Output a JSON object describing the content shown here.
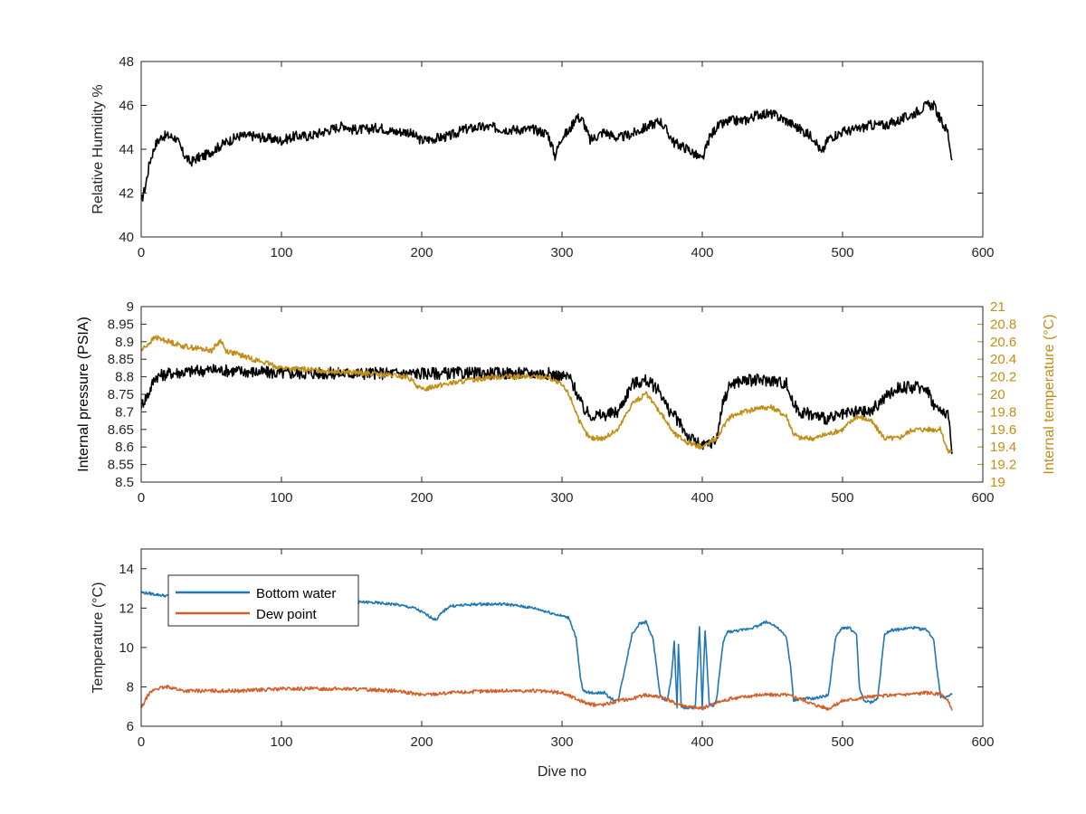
{
  "chart_data": [
    {
      "type": "line",
      "xlabel": "",
      "ylabel": "Relative Humidity %",
      "xlim": [
        0,
        600
      ],
      "ylim": [
        40,
        48
      ],
      "xticks": [
        0,
        100,
        200,
        300,
        400,
        500,
        600
      ],
      "yticks": [
        40,
        42,
        44,
        46,
        48
      ],
      "grid": false,
      "series": [
        {
          "color": "#000000",
          "x": [
            0,
            3,
            6,
            10,
            15,
            20,
            25,
            30,
            35,
            40,
            45,
            50,
            55,
            60,
            70,
            80,
            90,
            100,
            110,
            120,
            130,
            140,
            145,
            150,
            160,
            170,
            180,
            190,
            200,
            210,
            220,
            230,
            240,
            250,
            260,
            270,
            280,
            290,
            295,
            300,
            305,
            310,
            315,
            320,
            330,
            340,
            350,
            360,
            370,
            380,
            390,
            400,
            405,
            410,
            420,
            430,
            440,
            450,
            460,
            470,
            480,
            485,
            490,
            500,
            510,
            520,
            530,
            540,
            550,
            560,
            565,
            570,
            575,
            578
          ],
          "y": [
            41.6,
            42.3,
            43.4,
            44.2,
            44.6,
            44.6,
            44.5,
            43.8,
            43.4,
            43.6,
            43.7,
            43.9,
            44.1,
            44.3,
            44.6,
            44.6,
            44.5,
            44.4,
            44.6,
            44.6,
            44.8,
            45.0,
            45.1,
            44.9,
            44.9,
            45.0,
            44.8,
            44.8,
            44.4,
            44.5,
            44.6,
            44.9,
            45.0,
            45.0,
            44.9,
            44.9,
            44.9,
            44.7,
            43.7,
            44.6,
            44.8,
            45.5,
            45.3,
            44.4,
            44.8,
            44.5,
            44.7,
            45.0,
            45.3,
            44.3,
            44.0,
            43.5,
            44.5,
            45.0,
            45.3,
            45.3,
            45.6,
            45.6,
            45.3,
            44.9,
            44.5,
            43.8,
            44.5,
            44.8,
            44.9,
            45.1,
            45.1,
            45.3,
            45.6,
            46.0,
            46.0,
            45.3,
            44.8,
            43.5
          ]
        }
      ]
    },
    {
      "type": "line",
      "xlabel": "",
      "ylabel": "Internal pressure (PSIA)",
      "ylabel_right": "Internal temperature (°C)",
      "xlim": [
        0,
        600
      ],
      "ylim": [
        8.5,
        9
      ],
      "ylim_right": [
        19,
        21
      ],
      "xticks": [
        0,
        100,
        200,
        300,
        400,
        500,
        600
      ],
      "yticks": [
        8.5,
        8.55,
        8.6,
        8.65,
        8.7,
        8.75,
        8.8,
        8.85,
        8.9,
        8.95,
        9
      ],
      "yticks_right": [
        19,
        19.2,
        19.4,
        19.6,
        19.8,
        20,
        20.2,
        20.4,
        20.6,
        20.8,
        21
      ],
      "grid": false,
      "series": [
        {
          "axis": "left",
          "color": "#000000",
          "x": [
            0,
            5,
            10,
            20,
            50,
            100,
            150,
            200,
            250,
            290,
            300,
            305,
            310,
            315,
            320,
            330,
            340,
            345,
            350,
            360,
            370,
            375,
            380,
            390,
            400,
            410,
            415,
            420,
            430,
            440,
            450,
            460,
            465,
            470,
            480,
            490,
            500,
            510,
            520,
            530,
            540,
            560,
            565,
            570,
            575,
            578
          ],
          "y": [
            8.72,
            8.75,
            8.8,
            8.81,
            8.82,
            8.81,
            8.81,
            8.81,
            8.81,
            8.81,
            8.8,
            8.8,
            8.76,
            8.71,
            8.69,
            8.69,
            8.7,
            8.74,
            8.78,
            8.79,
            8.76,
            8.71,
            8.69,
            8.63,
            8.6,
            8.62,
            8.73,
            8.78,
            8.79,
            8.79,
            8.79,
            8.78,
            8.72,
            8.7,
            8.69,
            8.68,
            8.69,
            8.7,
            8.7,
            8.74,
            8.77,
            8.77,
            8.72,
            8.7,
            8.7,
            8.58
          ]
        },
        {
          "axis": "right",
          "color": "#c38e16",
          "x": [
            0,
            10,
            20,
            30,
            50,
            57,
            60,
            70,
            100,
            150,
            190,
            200,
            210,
            250,
            290,
            300,
            305,
            310,
            315,
            320,
            330,
            340,
            350,
            360,
            370,
            380,
            390,
            400,
            410,
            420,
            430,
            440,
            450,
            460,
            465,
            470,
            480,
            490,
            500,
            510,
            520,
            530,
            540,
            550,
            560,
            570,
            575,
            578
          ],
          "y": [
            20.5,
            20.65,
            20.6,
            20.55,
            20.5,
            20.62,
            20.5,
            20.45,
            20.3,
            20.25,
            20.2,
            20.05,
            20.1,
            20.2,
            20.2,
            20.1,
            20.0,
            19.8,
            19.6,
            19.5,
            19.5,
            19.6,
            19.9,
            20.0,
            19.8,
            19.55,
            19.45,
            19.4,
            19.5,
            19.75,
            19.8,
            19.85,
            19.85,
            19.75,
            19.55,
            19.5,
            19.5,
            19.55,
            19.6,
            19.75,
            19.7,
            19.5,
            19.5,
            19.6,
            19.6,
            19.6,
            19.35,
            19.35
          ]
        }
      ]
    },
    {
      "type": "line",
      "xlabel": "Dive no",
      "ylabel": "Temperature (°C)",
      "xlim": [
        0,
        600
      ],
      "ylim": [
        6,
        15
      ],
      "xticks": [
        0,
        100,
        200,
        300,
        400,
        500,
        600
      ],
      "yticks": [
        6,
        8,
        10,
        12,
        14
      ],
      "grid": false,
      "legend_position": "top-left",
      "series": [
        {
          "name": "Bottom water",
          "color": "#1f77b4",
          "x": [
            0,
            10,
            20,
            40,
            70,
            100,
            130,
            160,
            180,
            195,
            205,
            210,
            215,
            220,
            240,
            260,
            280,
            290,
            300,
            305,
            310,
            313,
            315,
            320,
            330,
            335,
            340,
            345,
            350,
            355,
            360,
            365,
            370,
            375,
            378,
            380,
            382,
            383,
            385,
            390,
            395,
            398,
            400,
            402,
            405,
            408,
            410,
            415,
            418,
            420,
            430,
            440,
            445,
            450,
            455,
            460,
            463,
            465,
            470,
            480,
            490,
            495,
            500,
            505,
            510,
            512,
            515,
            520,
            525,
            530,
            535,
            540,
            550,
            560,
            565,
            568,
            570,
            575,
            578
          ],
          "y": [
            12.8,
            12.7,
            12.6,
            12.5,
            12.4,
            12.4,
            12.3,
            12.3,
            12.2,
            12.0,
            11.6,
            11.4,
            11.8,
            12.1,
            12.2,
            12.2,
            12.0,
            11.8,
            11.6,
            11.5,
            10.5,
            8.5,
            7.8,
            7.7,
            7.7,
            7.4,
            7.3,
            9.0,
            10.7,
            11.2,
            11.3,
            10.4,
            7.5,
            7.3,
            8.5,
            10.3,
            7.0,
            10.2,
            7.0,
            6.9,
            7.0,
            11.0,
            7.0,
            10.9,
            7.1,
            7.0,
            7.3,
            10.3,
            10.8,
            10.8,
            10.9,
            11.1,
            11.3,
            11.2,
            10.9,
            10.5,
            9.0,
            7.3,
            7.4,
            7.4,
            7.6,
            10.5,
            11.0,
            11.0,
            10.6,
            8.0,
            7.3,
            7.2,
            7.4,
            10.7,
            10.9,
            10.9,
            11.0,
            10.9,
            10.4,
            8.5,
            7.5,
            7.5,
            7.6
          ]
        },
        {
          "name": "Dew point",
          "color": "#d35f2a",
          "x": [
            0,
            5,
            10,
            20,
            30,
            50,
            70,
            100,
            130,
            150,
            180,
            200,
            220,
            250,
            280,
            300,
            310,
            320,
            330,
            340,
            350,
            360,
            370,
            380,
            390,
            400,
            410,
            420,
            440,
            450,
            460,
            470,
            480,
            490,
            500,
            520,
            540,
            560,
            570,
            575,
            578
          ],
          "y": [
            6.9,
            7.6,
            7.9,
            8.0,
            7.8,
            7.8,
            7.8,
            7.9,
            7.9,
            7.9,
            7.8,
            7.6,
            7.7,
            7.8,
            7.8,
            7.7,
            7.4,
            7.1,
            7.1,
            7.3,
            7.4,
            7.6,
            7.5,
            7.2,
            7.0,
            6.9,
            7.2,
            7.4,
            7.6,
            7.6,
            7.6,
            7.4,
            7.1,
            6.9,
            7.3,
            7.5,
            7.6,
            7.7,
            7.6,
            7.3,
            6.8
          ]
        }
      ]
    }
  ]
}
